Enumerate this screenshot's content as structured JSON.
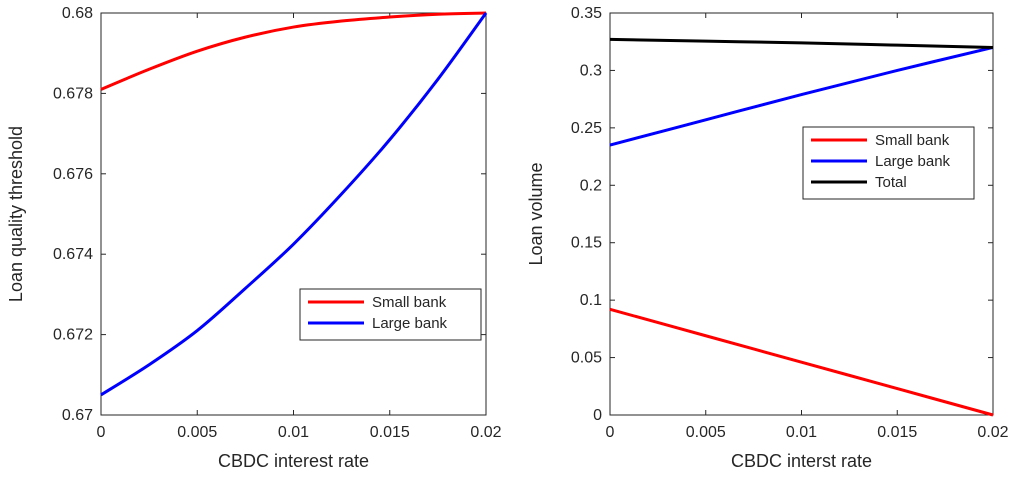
{
  "chart_data": [
    {
      "type": "line",
      "xlabel": "CBDC interest rate",
      "ylabel": "Loan quality threshold",
      "xlim": [
        0,
        0.02
      ],
      "ylim": [
        0.67,
        0.68
      ],
      "xticks": [
        "0",
        "0.005",
        "0.01",
        "0.015",
        "0.02"
      ],
      "yticks": [
        "0.67",
        "0.672",
        "0.674",
        "0.676",
        "0.678",
        "0.68"
      ],
      "grid": false,
      "legend_position": "lower-right",
      "series": [
        {
          "name": "Small bank",
          "color": "#ff0000",
          "x": [
            0,
            0.0025,
            0.005,
            0.0075,
            0.01,
            0.0125,
            0.015,
            0.0175,
            0.02
          ],
          "y": [
            0.6781,
            0.6786,
            0.67905,
            0.6794,
            0.67965,
            0.6798,
            0.6799,
            0.67997,
            0.68
          ]
        },
        {
          "name": "Large bank",
          "color": "#0000ff",
          "x": [
            0,
            0.0025,
            0.005,
            0.0075,
            0.01,
            0.0125,
            0.015,
            0.0175,
            0.02
          ],
          "y": [
            0.6705,
            0.67125,
            0.6721,
            0.67315,
            0.67425,
            0.6755,
            0.67685,
            0.67835,
            0.68
          ]
        }
      ]
    },
    {
      "type": "line",
      "xlabel": "CBDC interst rate",
      "ylabel": "Loan volume",
      "xlim": [
        0,
        0.02
      ],
      "ylim": [
        0,
        0.35
      ],
      "xticks": [
        "0",
        "0.005",
        "0.01",
        "0.015",
        "0.02"
      ],
      "yticks": [
        "0",
        "0.05",
        "0.1",
        "0.15",
        "0.2",
        "0.25",
        "0.3",
        "0.35"
      ],
      "grid": false,
      "legend_position": "upper-right",
      "series": [
        {
          "name": "Small bank",
          "color": "#ff0000",
          "x": [
            0,
            0.005,
            0.01,
            0.015,
            0.02
          ],
          "y": [
            0.092,
            0.069,
            0.046,
            0.023,
            0
          ]
        },
        {
          "name": "Large bank",
          "color": "#0000ff",
          "x": [
            0,
            0.005,
            0.01,
            0.015,
            0.02
          ],
          "y": [
            0.235,
            0.257,
            0.279,
            0.3,
            0.32
          ]
        },
        {
          "name": "Total",
          "color": "#000000",
          "x": [
            0,
            0.005,
            0.01,
            0.015,
            0.02
          ],
          "y": [
            0.327,
            0.3255,
            0.324,
            0.322,
            0.32
          ]
        }
      ]
    }
  ]
}
